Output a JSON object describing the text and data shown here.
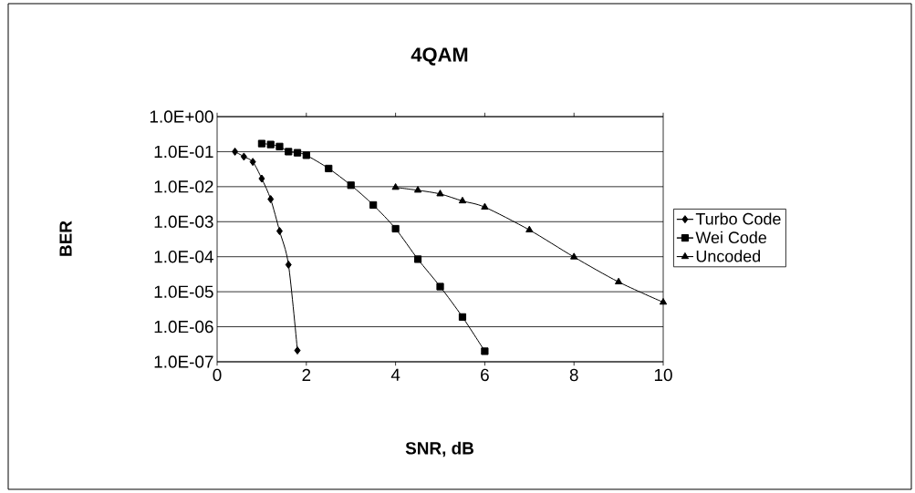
{
  "chart_data": {
    "type": "line",
    "title": "4QAM",
    "xlabel": "SNR, dB",
    "ylabel": "BER",
    "log": "y",
    "grid": "y",
    "legend": "right",
    "xlim": [
      0,
      10
    ],
    "xticks": [
      0,
      2,
      4,
      6,
      8,
      10
    ],
    "ylim": [
      1e-07,
      1
    ],
    "yticks": [
      {
        "value": 1e-07,
        "label": "1.0E-07"
      },
      {
        "value": 1e-06,
        "label": "1.0E-06"
      },
      {
        "value": 1e-05,
        "label": "1.0E-05"
      },
      {
        "value": 0.0001,
        "label": "1.0E-04"
      },
      {
        "value": 0.001,
        "label": "1.0E-03"
      },
      {
        "value": 0.01,
        "label": "1.0E-02"
      },
      {
        "value": 0.1,
        "label": "1.0E-01"
      },
      {
        "value": 1,
        "label": "1.0E+00"
      }
    ],
    "series": [
      {
        "name": "Turbo Code",
        "color": "#000000",
        "marker": "diamond",
        "x": [
          0.4,
          0.6,
          0.8,
          1.0,
          1.2,
          1.4,
          1.6,
          1.8
        ],
        "values": [
          0.1,
          0.072,
          0.051,
          0.017,
          0.0044,
          0.00054,
          5.9e-05,
          2.1e-07
        ]
      },
      {
        "name": "Wei Code",
        "color": "#000000",
        "marker": "square",
        "x": [
          1.0,
          1.2,
          1.4,
          1.6,
          1.8,
          2.0,
          2.5,
          3.0,
          3.5,
          4.0,
          4.5,
          5.0,
          5.5,
          6.0
        ],
        "values": [
          0.17,
          0.16,
          0.14,
          0.1,
          0.093,
          0.079,
          0.033,
          0.011,
          0.003,
          0.00063,
          8.5e-05,
          1.4e-05,
          1.9e-06,
          2e-07
        ]
      },
      {
        "name": "Uncoded",
        "color": "#000000",
        "marker": "triangle",
        "x": [
          4.0,
          4.5,
          5.0,
          5.5,
          6.0,
          7.0,
          8.0,
          9.0,
          10.0
        ],
        "values": [
          0.0095,
          0.0079,
          0.0062,
          0.0039,
          0.0026,
          0.00058,
          9.8e-05,
          1.9e-05,
          5e-06
        ]
      }
    ]
  }
}
